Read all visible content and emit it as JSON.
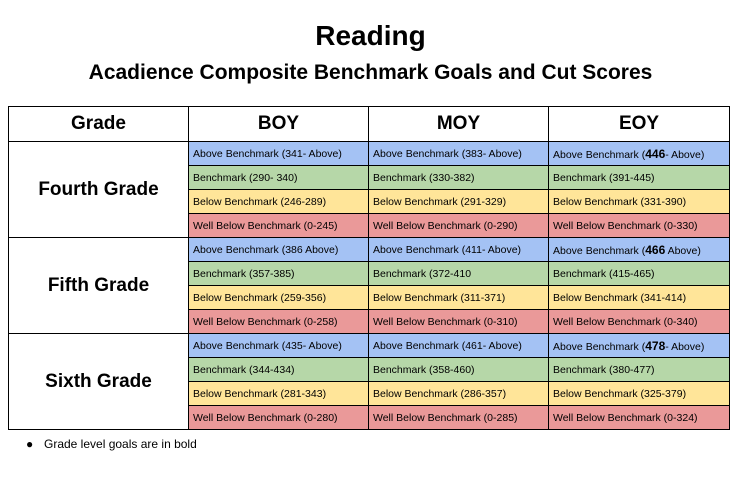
{
  "title": "Reading",
  "subtitle": "Acadience Composite Benchmark Goals and Cut Scores",
  "table": {
    "headers": [
      "Grade",
      "BOY",
      "MOY",
      "EOY"
    ],
    "grades": [
      {
        "name": "Fourth Grade",
        "rows": [
          [
            {
              "text": "Above Benchmark (341- Above)"
            },
            {
              "text": "Above Benchmark (383- Above)"
            },
            {
              "pre": "Above Benchmark (",
              "bold": "446",
              "post": "- Above)"
            }
          ],
          [
            {
              "text": "Benchmark (290- 340)"
            },
            {
              "text": "Benchmark (330-382)"
            },
            {
              "text": "Benchmark (391-445)"
            }
          ],
          [
            {
              "text": "Below Benchmark (246-289)"
            },
            {
              "text": "Below Benchmark (291-329)"
            },
            {
              "text": "Below Benchmark (331-390)"
            }
          ],
          [
            {
              "text": "Well Below Benchmark (0-245)"
            },
            {
              "text": "Well Below Benchmark (0-290)"
            },
            {
              "text": "Well Below Benchmark (0-330)"
            }
          ]
        ]
      },
      {
        "name": "Fifth Grade",
        "rows": [
          [
            {
              "text": "Above Benchmark (386 Above)"
            },
            {
              "text": "Above Benchmark (411- Above)"
            },
            {
              "pre": "Above Benchmark (",
              "bold": "466",
              "post": " Above)"
            }
          ],
          [
            {
              "text": "Benchmark (357-385)"
            },
            {
              "text": "Benchmark (372-410"
            },
            {
              "text": "Benchmark (415-465)"
            }
          ],
          [
            {
              "text": "Below Benchmark (259-356)"
            },
            {
              "text": "Below Benchmark (311-371)"
            },
            {
              "text": "Below Benchmark (341-414)"
            }
          ],
          [
            {
              "text": "Well Below Benchmark (0-258)"
            },
            {
              "text": "Well Below Benchmark (0-310)"
            },
            {
              "text": "Well Below Benchmark (0-340)"
            }
          ]
        ]
      },
      {
        "name": "Sixth Grade",
        "rows": [
          [
            {
              "text": "Above Benchmark (435- Above)"
            },
            {
              "text": "Above Benchmark (461- Above)"
            },
            {
              "pre": "Above Benchmark (",
              "bold": "478",
              "post": "- Above)"
            }
          ],
          [
            {
              "text": "Benchmark (344-434)"
            },
            {
              "text": "Benchmark (358-460)"
            },
            {
              "text": "Benchmark (380-477)"
            }
          ],
          [
            {
              "text": "Below Benchmark (281-343)"
            },
            {
              "text": "Below Benchmark (286-357)"
            },
            {
              "text": "Below Benchmark (325-379)"
            }
          ],
          [
            {
              "text": "Well Below Benchmark (0-280)"
            },
            {
              "text": "Well Below Benchmark (0-285)"
            },
            {
              "text": "Well Below Benchmark (0-324)"
            }
          ]
        ]
      }
    ],
    "level_colors": [
      "#a4c2f4",
      "#b6d7a8",
      "#ffe599",
      "#ea9999"
    ]
  },
  "note": "Grade level goals are in bold"
}
